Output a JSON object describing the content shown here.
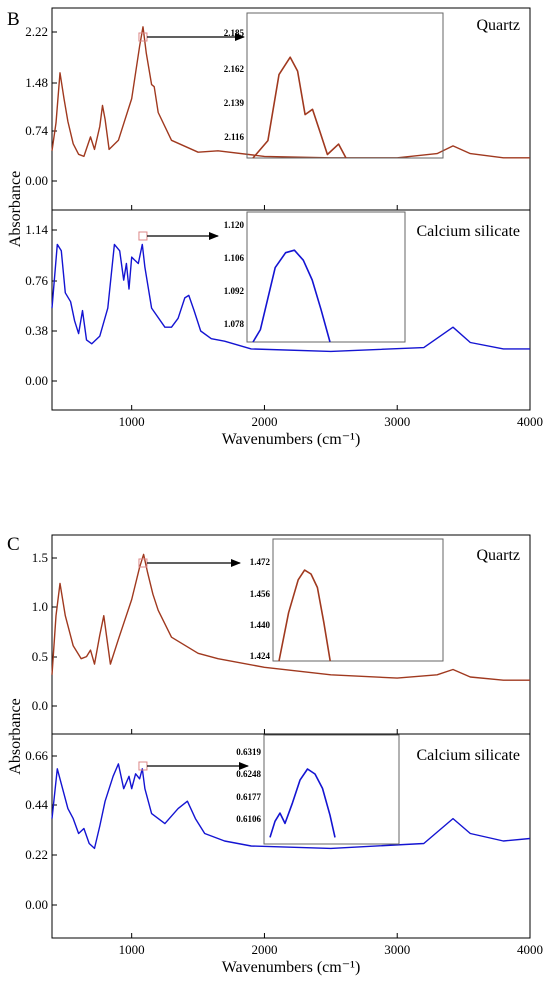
{
  "figure": {
    "panels": [
      {
        "letter": "B",
        "y_axis_label": "Absorbance",
        "x_axis_label": "Wavenumbers (cm⁻¹)",
        "x_ticks": [
          "1000",
          "2000",
          "3000",
          "4000"
        ],
        "top": {
          "name": "Quartz",
          "color": "#a0391f",
          "y_ticks": [
            "2.22",
            "1.48",
            "0.74",
            "0.00"
          ],
          "inset_ticks": [
            "2.185",
            "2.162",
            "2.139",
            "2.116"
          ]
        },
        "bottom": {
          "name": "Calcium silicate",
          "color": "#1414d2",
          "y_ticks": [
            "1.14",
            "0.76",
            "0.38",
            "0.00"
          ],
          "inset_ticks": [
            "1.120",
            "1.106",
            "1.092",
            "1.078"
          ]
        }
      },
      {
        "letter": "C",
        "y_axis_label": "Absorbance",
        "x_axis_label": "Wavenumbers (cm⁻¹)",
        "x_ticks": [
          "1000",
          "2000",
          "3000",
          "4000"
        ],
        "top": {
          "name": "Quartz",
          "color": "#a0391f",
          "y_ticks": [
            "1.5",
            "1.0",
            "0.5",
            "0.0"
          ],
          "inset_ticks": [
            "1.472",
            "1.456",
            "1.440",
            "1.424"
          ]
        },
        "bottom": {
          "name": "Calcium silicate",
          "color": "#1414d2",
          "y_ticks": [
            "0.66",
            "0.44",
            "0.22",
            "0.00"
          ],
          "inset_ticks": [
            "0.6319",
            "0.6248",
            "0.6177",
            "0.6106"
          ]
        }
      }
    ]
  },
  "chart_data": [
    {
      "panel": "B",
      "type": "line",
      "title": "",
      "xlabel": "Wavenumbers (cm⁻¹)",
      "ylabel": "Absorbance",
      "xlim": [
        400,
        4000
      ],
      "subplots": [
        {
          "series_name": "Quartz",
          "ylim": [
            -0.45,
            2.45
          ],
          "x": [
            400,
            430,
            460,
            490,
            520,
            560,
            600,
            640,
            690,
            720,
            760,
            780,
            800,
            830,
            900,
            1000,
            1060,
            1085,
            1110,
            1150,
            1170,
            1200,
            1300,
            1500,
            1650,
            2000,
            2500,
            3000,
            3300,
            3420,
            3550,
            3800,
            4000
          ],
          "y": [
            0.4,
            0.8,
            1.52,
            1.15,
            0.82,
            0.5,
            0.35,
            0.32,
            0.6,
            0.42,
            0.75,
            1.05,
            0.85,
            0.42,
            0.55,
            1.15,
            1.9,
            2.18,
            1.8,
            1.35,
            1.32,
            0.95,
            0.55,
            0.38,
            0.4,
            0.32,
            0.3,
            0.3,
            0.36,
            0.47,
            0.36,
            0.3,
            0.3
          ],
          "inset": {
            "ylim": [
              2.11,
              2.19
            ],
            "x": [
              0,
              0.08,
              0.14,
              0.2,
              0.24,
              0.28,
              0.32,
              0.36,
              0.4,
              0.46,
              0.5
            ],
            "y": [
              2.11,
              2.12,
              2.158,
              2.168,
              2.16,
              2.135,
              2.138,
              2.125,
              2.112,
              2.118,
              2.11
            ]
          }
        },
        {
          "series_name": "Calcium silicate",
          "ylim": [
            -0.2,
            1.37
          ],
          "x": [
            400,
            440,
            470,
            500,
            540,
            570,
            600,
            630,
            660,
            700,
            760,
            820,
            870,
            910,
            940,
            960,
            980,
            1000,
            1020,
            1050,
            1080,
            1100,
            1150,
            1250,
            1300,
            1350,
            1400,
            1430,
            1470,
            1520,
            1600,
            1700,
            1900,
            2500,
            3200,
            3420,
            3550,
            3800,
            4000
          ],
          "y": [
            0.6,
            1.1,
            1.05,
            0.72,
            0.65,
            0.5,
            0.4,
            0.58,
            0.35,
            0.32,
            0.38,
            0.6,
            1.1,
            1.05,
            0.82,
            0.95,
            0.75,
            1.0,
            0.98,
            0.95,
            1.1,
            0.92,
            0.6,
            0.45,
            0.45,
            0.52,
            0.68,
            0.7,
            0.58,
            0.42,
            0.36,
            0.34,
            0.28,
            0.26,
            0.29,
            0.45,
            0.33,
            0.28,
            0.28
          ],
          "inset": {
            "ylim": [
              1.075,
              1.125
            ],
            "x": [
              0,
              0.05,
              0.15,
              0.22,
              0.28,
              0.34,
              0.4,
              0.46,
              0.52
            ],
            "y": [
              1.075,
              1.08,
              1.105,
              1.111,
              1.112,
              1.108,
              1.1,
              1.088,
              1.075
            ]
          }
        }
      ]
    },
    {
      "panel": "C",
      "type": "line",
      "title": "",
      "xlabel": "Wavenumbers (cm⁻¹)",
      "ylabel": "Absorbance",
      "xlim": [
        400,
        4000
      ],
      "subplots": [
        {
          "series_name": "Quartz",
          "ylim": [
            -0.2,
            1.65
          ],
          "x": [
            400,
            430,
            460,
            500,
            560,
            620,
            660,
            690,
            720,
            760,
            790,
            810,
            840,
            900,
            1000,
            1060,
            1090,
            1120,
            1160,
            1200,
            1300,
            1500,
            1650,
            2000,
            2500,
            3000,
            3300,
            3420,
            3550,
            3800,
            4000
          ],
          "y": [
            0.35,
            0.9,
            1.2,
            0.9,
            0.62,
            0.5,
            0.52,
            0.58,
            0.45,
            0.72,
            0.9,
            0.72,
            0.45,
            0.68,
            1.05,
            1.35,
            1.47,
            1.3,
            1.1,
            0.95,
            0.7,
            0.55,
            0.5,
            0.42,
            0.35,
            0.32,
            0.35,
            0.4,
            0.33,
            0.3,
            0.3
          ],
          "inset": {
            "ylim": [
              1.42,
              1.48
            ],
            "x": [
              0,
              0.06,
              0.12,
              0.16,
              0.2,
              0.24,
              0.28,
              0.32
            ],
            "y": [
              1.42,
              1.445,
              1.462,
              1.467,
              1.465,
              1.458,
              1.44,
              1.42
            ]
          }
        },
        {
          "series_name": "Calcium silicate",
          "ylim": [
            -0.1,
            0.72
          ],
          "x": [
            400,
            440,
            480,
            520,
            560,
            600,
            640,
            680,
            720,
            760,
            800,
            860,
            900,
            940,
            980,
            1000,
            1030,
            1060,
            1080,
            1100,
            1150,
            1250,
            1350,
            1420,
            1480,
            1550,
            1700,
            1900,
            2500,
            3200,
            3420,
            3550,
            3800,
            4000
          ],
          "y": [
            0.38,
            0.58,
            0.5,
            0.42,
            0.38,
            0.32,
            0.34,
            0.28,
            0.26,
            0.35,
            0.45,
            0.55,
            0.6,
            0.5,
            0.55,
            0.5,
            0.56,
            0.54,
            0.58,
            0.5,
            0.4,
            0.36,
            0.42,
            0.45,
            0.38,
            0.32,
            0.29,
            0.27,
            0.26,
            0.28,
            0.38,
            0.32,
            0.29,
            0.3
          ],
          "inset": {
            "ylim": [
              0.609,
              0.634
            ],
            "x": [
              0,
              0.04,
              0.08,
              0.12,
              0.18,
              0.24,
              0.3,
              0.36,
              0.42,
              0.48,
              0.52
            ],
            "y": [
              0.6106,
              0.6145,
              0.6165,
              0.614,
              0.619,
              0.6245,
              0.6272,
              0.626,
              0.6225,
              0.616,
              0.6106
            ]
          }
        }
      ]
    }
  ]
}
